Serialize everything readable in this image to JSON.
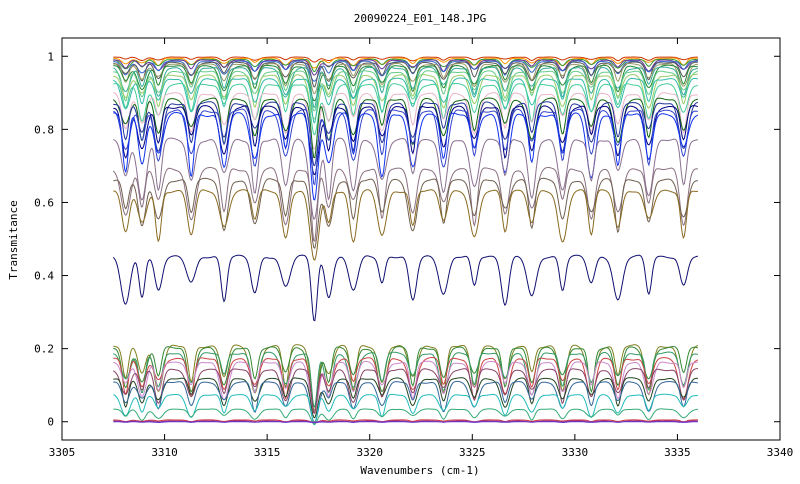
{
  "chart_data": {
    "type": "line",
    "title": "20090224_E01_148.JPG",
    "xlabel": "Wavenumbers (cm-1)",
    "ylabel": "Transmitance",
    "xlim": [
      3305,
      3340
    ],
    "ylim": [
      -0.05,
      1.05
    ],
    "x_ticks": [
      3305,
      3310,
      3315,
      3320,
      3325,
      3330,
      3335,
      3340
    ],
    "y_ticks": [
      0,
      0.2,
      0.4,
      0.6,
      0.8,
      1
    ],
    "x_tick_labels": [
      "3305",
      "3310",
      "3315",
      "3320",
      "3325",
      "3330",
      "3335",
      "3340"
    ],
    "y_tick_labels": [
      "0",
      "0.2",
      "0.4",
      "0.6",
      "0.8",
      "1"
    ],
    "grid": false,
    "legend": "none",
    "x_range_of_data": [
      3307.5,
      3336
    ],
    "absorption_lines": [
      3308.1,
      3308.9,
      3309.7,
      3311.3,
      3312.9,
      3314.4,
      3315.9,
      3317.3,
      3318.0,
      3319.2,
      3320.6,
      3322.1,
      3323.6,
      3325.1,
      3326.6,
      3327.9,
      3329.4,
      3330.8,
      3332.1,
      3333.6,
      3335.3
    ],
    "series": [
      {
        "baseline": 0.998,
        "depth": 0.01,
        "color": "#cc3300"
      },
      {
        "baseline": 0.995,
        "depth": 0.02,
        "color": "#ff9900"
      },
      {
        "baseline": 0.992,
        "depth": 0.025,
        "color": "#339933"
      },
      {
        "baseline": 0.99,
        "depth": 0.03,
        "color": "#663399"
      },
      {
        "baseline": 0.987,
        "depth": 0.04,
        "color": "#3366cc"
      },
      {
        "baseline": 0.984,
        "depth": 0.05,
        "color": "#555555"
      },
      {
        "baseline": 0.98,
        "depth": 0.06,
        "color": "#999966"
      },
      {
        "baseline": 0.975,
        "depth": 0.07,
        "color": "#228833"
      },
      {
        "baseline": 0.97,
        "depth": 0.08,
        "color": "#33aa99"
      },
      {
        "baseline": 0.96,
        "depth": 0.08,
        "color": "#66cc88"
      },
      {
        "baseline": 0.95,
        "depth": 0.09,
        "color": "#99cc66"
      },
      {
        "baseline": 0.94,
        "depth": 0.09,
        "color": "#33bbaa"
      },
      {
        "baseline": 0.925,
        "depth": 0.1,
        "color": "#44cc99"
      },
      {
        "baseline": 0.9,
        "depth": 0.11,
        "color": "#e8b4c8"
      },
      {
        "baseline": 0.885,
        "depth": 0.12,
        "color": "#116611"
      },
      {
        "baseline": 0.875,
        "depth": 0.13,
        "color": "#223399"
      },
      {
        "baseline": 0.865,
        "depth": 0.14,
        "color": "#000080"
      },
      {
        "baseline": 0.855,
        "depth": 0.15,
        "color": "#3344cc"
      },
      {
        "baseline": 0.845,
        "depth": 0.17,
        "color": "#1133ee"
      },
      {
        "baseline": 0.775,
        "depth": 0.16,
        "color": "#8a7090"
      },
      {
        "baseline": 0.695,
        "depth": 0.15,
        "color": "#8a7080"
      },
      {
        "baseline": 0.665,
        "depth": 0.14,
        "color": "#706050"
      },
      {
        "baseline": 0.635,
        "depth": 0.14,
        "color": "#8a6a20"
      },
      {
        "baseline": 0.455,
        "depth": 0.13,
        "color": "#101070"
      },
      {
        "baseline": 0.21,
        "depth": 0.13,
        "color": "#808020"
      },
      {
        "baseline": 0.205,
        "depth": 0.12,
        "color": "#338833"
      },
      {
        "baseline": 0.19,
        "depth": 0.11,
        "color": "#339966"
      },
      {
        "baseline": 0.175,
        "depth": 0.11,
        "color": "#cc4444"
      },
      {
        "baseline": 0.165,
        "depth": 0.1,
        "color": "#cc88cc"
      },
      {
        "baseline": 0.145,
        "depth": 0.09,
        "color": "#884466"
      },
      {
        "baseline": 0.12,
        "depth": 0.08,
        "color": "#224422"
      },
      {
        "baseline": 0.11,
        "depth": 0.08,
        "color": "#336699"
      },
      {
        "baseline": 0.075,
        "depth": 0.06,
        "color": "#22bbbb"
      },
      {
        "baseline": 0.035,
        "depth": 0.03,
        "color": "#33aa77"
      },
      {
        "baseline": 0.005,
        "depth": 0.005,
        "color": "#cc3333"
      },
      {
        "baseline": 0.002,
        "depth": 0.003,
        "color": "#993399"
      },
      {
        "baseline": 0.0,
        "depth": 0.002,
        "color": "#6633cc"
      }
    ]
  }
}
